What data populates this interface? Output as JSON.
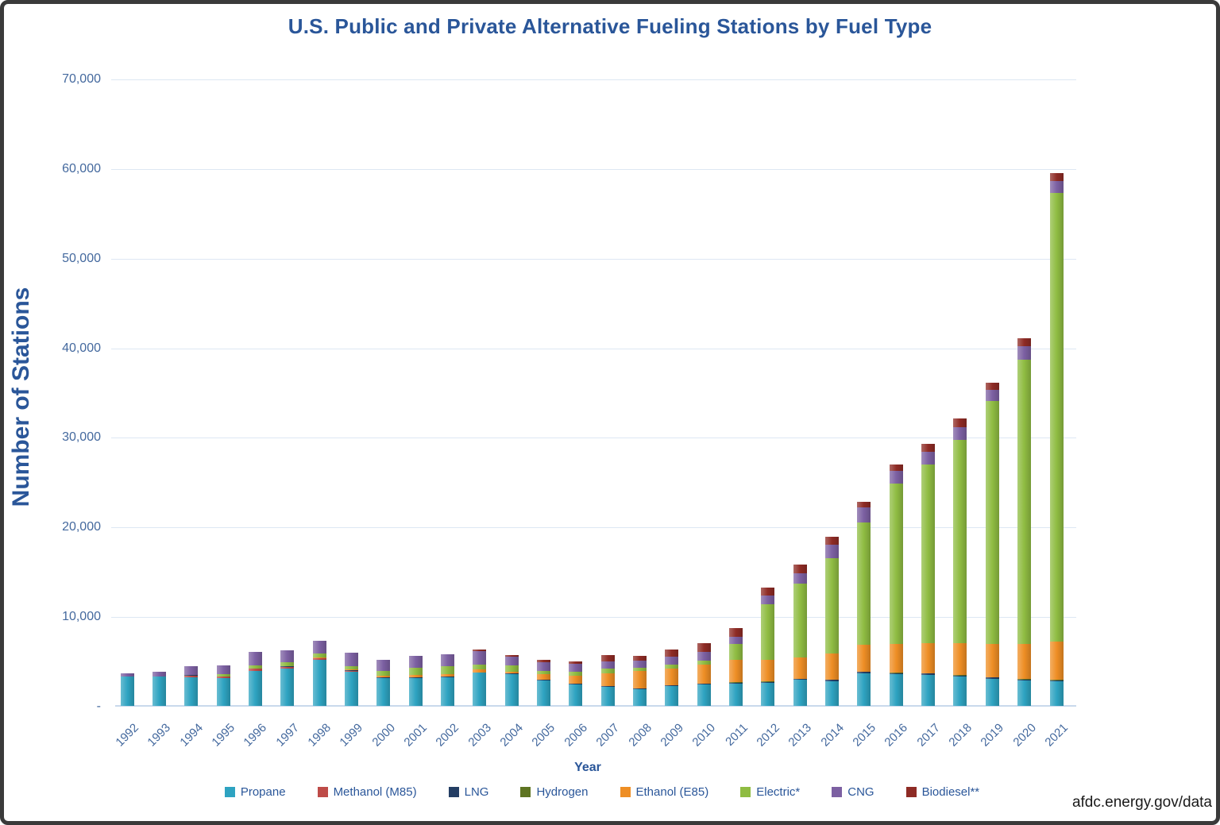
{
  "source_text": "afdc.energy.gov/data",
  "chart_data": {
    "type": "bar",
    "stacked": true,
    "title": "U.S. Public and Private Alternative Fueling Stations by Fuel Type",
    "xlabel": "Year",
    "ylabel": "Number of Stations",
    "ylim": [
      0,
      70000
    ],
    "ytick_interval": 10000,
    "ytick_labels": [
      "-",
      "10,000",
      "20,000",
      "30,000",
      "40,000",
      "50,000",
      "60,000",
      "70,000"
    ],
    "grid": true,
    "legend_position": "bottom",
    "categories": [
      "1992",
      "1993",
      "1994",
      "1995",
      "1996",
      "1997",
      "1998",
      "1999",
      "2000",
      "2001",
      "2002",
      "2003",
      "2004",
      "2005",
      "2006",
      "2007",
      "2008",
      "2009",
      "2010",
      "2011",
      "2012",
      "2013",
      "2014",
      "2015",
      "2016",
      "2017",
      "2018",
      "2019",
      "2020",
      "2021"
    ],
    "series": [
      {
        "name": "Propane",
        "color": "#2ea3c1",
        "values": [
          3310,
          3255,
          3165,
          3075,
          3930,
          4170,
          5100,
          3785,
          3105,
          3135,
          3195,
          3695,
          3545,
          2870,
          2425,
          2130,
          1890,
          2220,
          2425,
          2510,
          2600,
          2900,
          2790,
          3675,
          3520,
          3460,
          3260,
          3020,
          2810,
          2720
        ]
      },
      {
        "name": "Methanol (M85)",
        "color": "#be4b48",
        "values": [
          0,
          0,
          235,
          180,
          210,
          210,
          180,
          150,
          0,
          0,
          0,
          0,
          0,
          0,
          0,
          0,
          0,
          0,
          0,
          0,
          0,
          0,
          0,
          0,
          0,
          0,
          0,
          0,
          0,
          0
        ]
      },
      {
        "name": "LNG",
        "color": "#243e64",
        "values": [
          0,
          10,
          20,
          30,
          40,
          50,
          60,
          60,
          60,
          60,
          60,
          60,
          60,
          60,
          60,
          60,
          60,
          60,
          60,
          80,
          100,
          120,
          130,
          140,
          150,
          150,
          150,
          150,
          140,
          140
        ]
      },
      {
        "name": "Hydrogen",
        "color": "#5e7422",
        "values": [
          0,
          0,
          0,
          0,
          0,
          0,
          0,
          0,
          0,
          10,
          10,
          10,
          20,
          20,
          20,
          30,
          30,
          30,
          30,
          30,
          30,
          30,
          30,
          40,
          40,
          40,
          40,
          50,
          60,
          100
        ]
      },
      {
        "name": "Ethanol (E85)",
        "color": "#ee8e25",
        "values": [
          0,
          0,
          0,
          0,
          0,
          40,
          40,
          60,
          240,
          210,
          240,
          300,
          200,
          590,
          830,
          1420,
          1950,
          1860,
          2070,
          2505,
          2415,
          2335,
          2860,
          2930,
          3240,
          3350,
          3550,
          3730,
          3910,
          4200
        ]
      },
      {
        "name": "Electric*",
        "color": "#8fbc42",
        "values": [
          0,
          0,
          0,
          240,
          325,
          440,
          440,
          355,
          530,
          830,
          890,
          590,
          680,
          385,
          500,
          500,
          300,
          410,
          470,
          1825,
          6230,
          8265,
          10680,
          13710,
          17870,
          19950,
          22670,
          27100,
          31720,
          50100
        ]
      },
      {
        "name": "CNG",
        "color": "#7c60a2",
        "values": [
          300,
          530,
          1035,
          1035,
          1535,
          1270,
          1465,
          1550,
          1240,
          1330,
          1330,
          1420,
          975,
          945,
          830,
          800,
          800,
          890,
          1000,
          800,
          975,
          1180,
          1480,
          1660,
          1400,
          1390,
          1480,
          1180,
          1480,
          1270
        ]
      },
      {
        "name": "Biodiesel**",
        "color": "#8e2b25",
        "values": [
          0,
          0,
          0,
          0,
          0,
          0,
          0,
          0,
          0,
          0,
          0,
          240,
          205,
          240,
          300,
          740,
          590,
          830,
          975,
          950,
          890,
          945,
          890,
          595,
          740,
          890,
          890,
          830,
          890,
          890
        ]
      }
    ]
  }
}
